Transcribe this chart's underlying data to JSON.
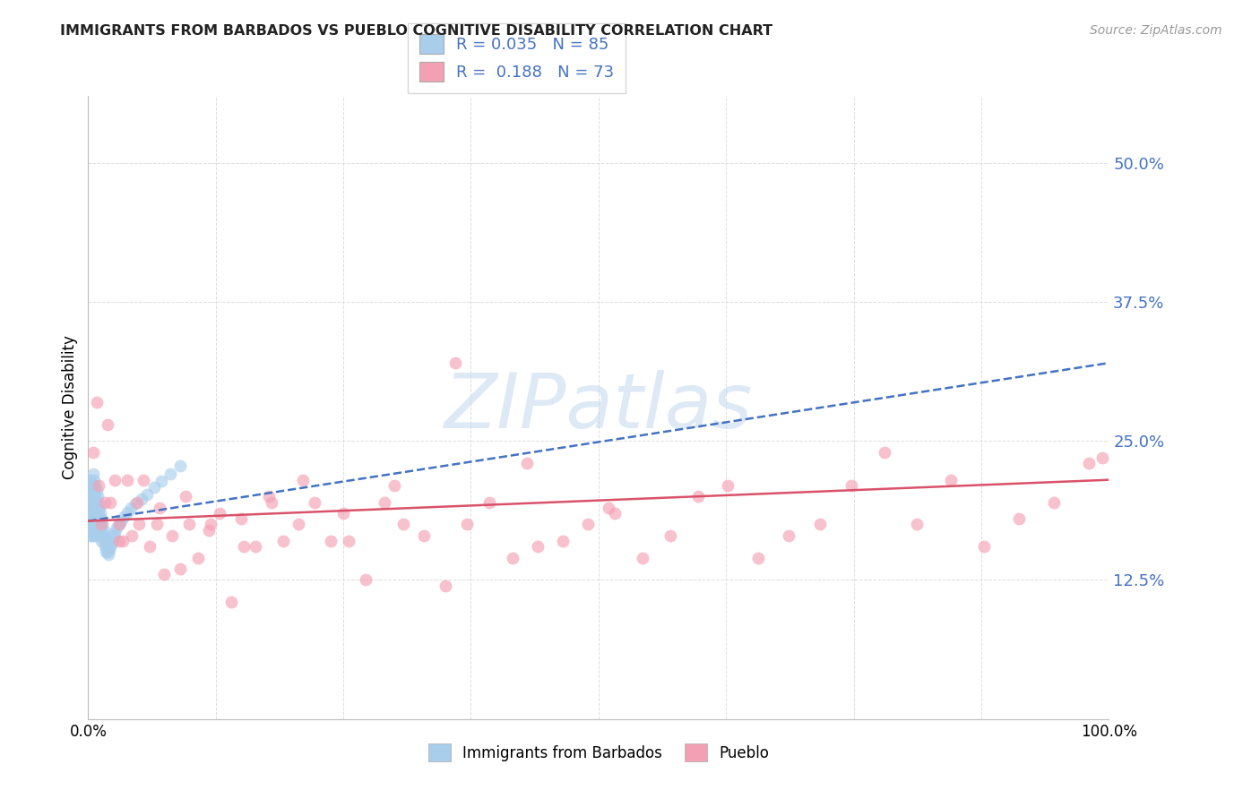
{
  "title": "IMMIGRANTS FROM BARBADOS VS PUEBLO COGNITIVE DISABILITY CORRELATION CHART",
  "source": "Source: ZipAtlas.com",
  "ylabel": "Cognitive Disability",
  "ytick_labels": [
    "50.0%",
    "37.5%",
    "25.0%",
    "12.5%"
  ],
  "ytick_values": [
    0.5,
    0.375,
    0.25,
    0.125
  ],
  "legend_r1": "R = 0.035",
  "legend_n1": "N = 85",
  "legend_r2": "R =  0.188",
  "legend_n2": "N = 73",
  "series1_color": "#A8CEEC",
  "series2_color": "#F4A0B4",
  "trendline1_color": "#4472C4",
  "trendline2_color": "#D9526A",
  "watermark": "ZIPatlas",
  "background_color": "#FFFFFF",
  "title_color": "#222222",
  "source_color": "#999999",
  "axis_label_color": "#4472C4",
  "grid_color": "#DDDDDD",
  "xlim": [
    0.0,
    1.0
  ],
  "ylim": [
    0.0,
    0.56
  ],
  "marker_size": 100,
  "marker_alpha": 0.65,
  "series1_x": [
    0.001,
    0.001,
    0.001,
    0.002,
    0.002,
    0.002,
    0.002,
    0.003,
    0.003,
    0.003,
    0.003,
    0.003,
    0.004,
    0.004,
    0.004,
    0.004,
    0.004,
    0.005,
    0.005,
    0.005,
    0.005,
    0.005,
    0.005,
    0.006,
    0.006,
    0.006,
    0.006,
    0.006,
    0.006,
    0.007,
    0.007,
    0.007,
    0.007,
    0.007,
    0.008,
    0.008,
    0.008,
    0.008,
    0.009,
    0.009,
    0.009,
    0.009,
    0.01,
    0.01,
    0.01,
    0.01,
    0.011,
    0.011,
    0.011,
    0.012,
    0.012,
    0.012,
    0.013,
    0.013,
    0.013,
    0.014,
    0.014,
    0.015,
    0.015,
    0.016,
    0.016,
    0.017,
    0.017,
    0.018,
    0.019,
    0.02,
    0.021,
    0.022,
    0.023,
    0.024,
    0.025,
    0.026,
    0.028,
    0.03,
    0.032,
    0.035,
    0.038,
    0.042,
    0.046,
    0.052,
    0.058,
    0.065,
    0.072,
    0.08,
    0.09
  ],
  "series1_y": [
    0.215,
    0.195,
    0.185,
    0.21,
    0.195,
    0.18,
    0.165,
    0.21,
    0.2,
    0.19,
    0.18,
    0.17,
    0.205,
    0.195,
    0.185,
    0.175,
    0.165,
    0.22,
    0.21,
    0.2,
    0.19,
    0.18,
    0.17,
    0.215,
    0.205,
    0.195,
    0.185,
    0.175,
    0.165,
    0.21,
    0.2,
    0.19,
    0.18,
    0.17,
    0.205,
    0.195,
    0.185,
    0.175,
    0.2,
    0.19,
    0.18,
    0.17,
    0.195,
    0.185,
    0.175,
    0.165,
    0.19,
    0.18,
    0.17,
    0.185,
    0.175,
    0.165,
    0.18,
    0.17,
    0.16,
    0.175,
    0.165,
    0.17,
    0.16,
    0.165,
    0.155,
    0.16,
    0.15,
    0.155,
    0.15,
    0.148,
    0.152,
    0.155,
    0.158,
    0.162,
    0.165,
    0.168,
    0.172,
    0.175,
    0.178,
    0.182,
    0.186,
    0.19,
    0.194,
    0.198,
    0.202,
    0.208,
    0.214,
    0.22,
    0.228
  ],
  "series2_x": [
    0.005,
    0.008,
    0.01,
    0.013,
    0.016,
    0.019,
    0.022,
    0.026,
    0.03,
    0.034,
    0.038,
    0.043,
    0.048,
    0.054,
    0.06,
    0.067,
    0.074,
    0.082,
    0.09,
    0.099,
    0.108,
    0.118,
    0.129,
    0.14,
    0.152,
    0.164,
    0.177,
    0.191,
    0.206,
    0.222,
    0.238,
    0.255,
    0.272,
    0.29,
    0.309,
    0.329,
    0.35,
    0.371,
    0.393,
    0.416,
    0.44,
    0.465,
    0.49,
    0.516,
    0.543,
    0.57,
    0.598,
    0.627,
    0.656,
    0.686,
    0.717,
    0.748,
    0.78,
    0.812,
    0.845,
    0.878,
    0.912,
    0.946,
    0.98,
    0.994,
    0.03,
    0.05,
    0.07,
    0.095,
    0.12,
    0.15,
    0.18,
    0.21,
    0.25,
    0.3,
    0.36,
    0.43,
    0.51
  ],
  "series2_y": [
    0.24,
    0.285,
    0.21,
    0.175,
    0.195,
    0.265,
    0.195,
    0.215,
    0.175,
    0.16,
    0.215,
    0.165,
    0.195,
    0.215,
    0.155,
    0.175,
    0.13,
    0.165,
    0.135,
    0.175,
    0.145,
    0.17,
    0.185,
    0.105,
    0.155,
    0.155,
    0.2,
    0.16,
    0.175,
    0.195,
    0.16,
    0.16,
    0.125,
    0.195,
    0.175,
    0.165,
    0.12,
    0.175,
    0.195,
    0.145,
    0.155,
    0.16,
    0.175,
    0.185,
    0.145,
    0.165,
    0.2,
    0.21,
    0.145,
    0.165,
    0.175,
    0.21,
    0.24,
    0.175,
    0.215,
    0.155,
    0.18,
    0.195,
    0.23,
    0.235,
    0.16,
    0.175,
    0.19,
    0.2,
    0.175,
    0.18,
    0.195,
    0.215,
    0.185,
    0.21,
    0.32,
    0.23,
    0.19
  ],
  "trendline1_start_x": 0.0,
  "trendline1_end_x": 1.0,
  "trendline1_start_y": 0.178,
  "trendline1_end_y": 0.32,
  "trendline2_start_x": 0.0,
  "trendline2_end_x": 1.0,
  "trendline2_start_y": 0.178,
  "trendline2_end_y": 0.215
}
